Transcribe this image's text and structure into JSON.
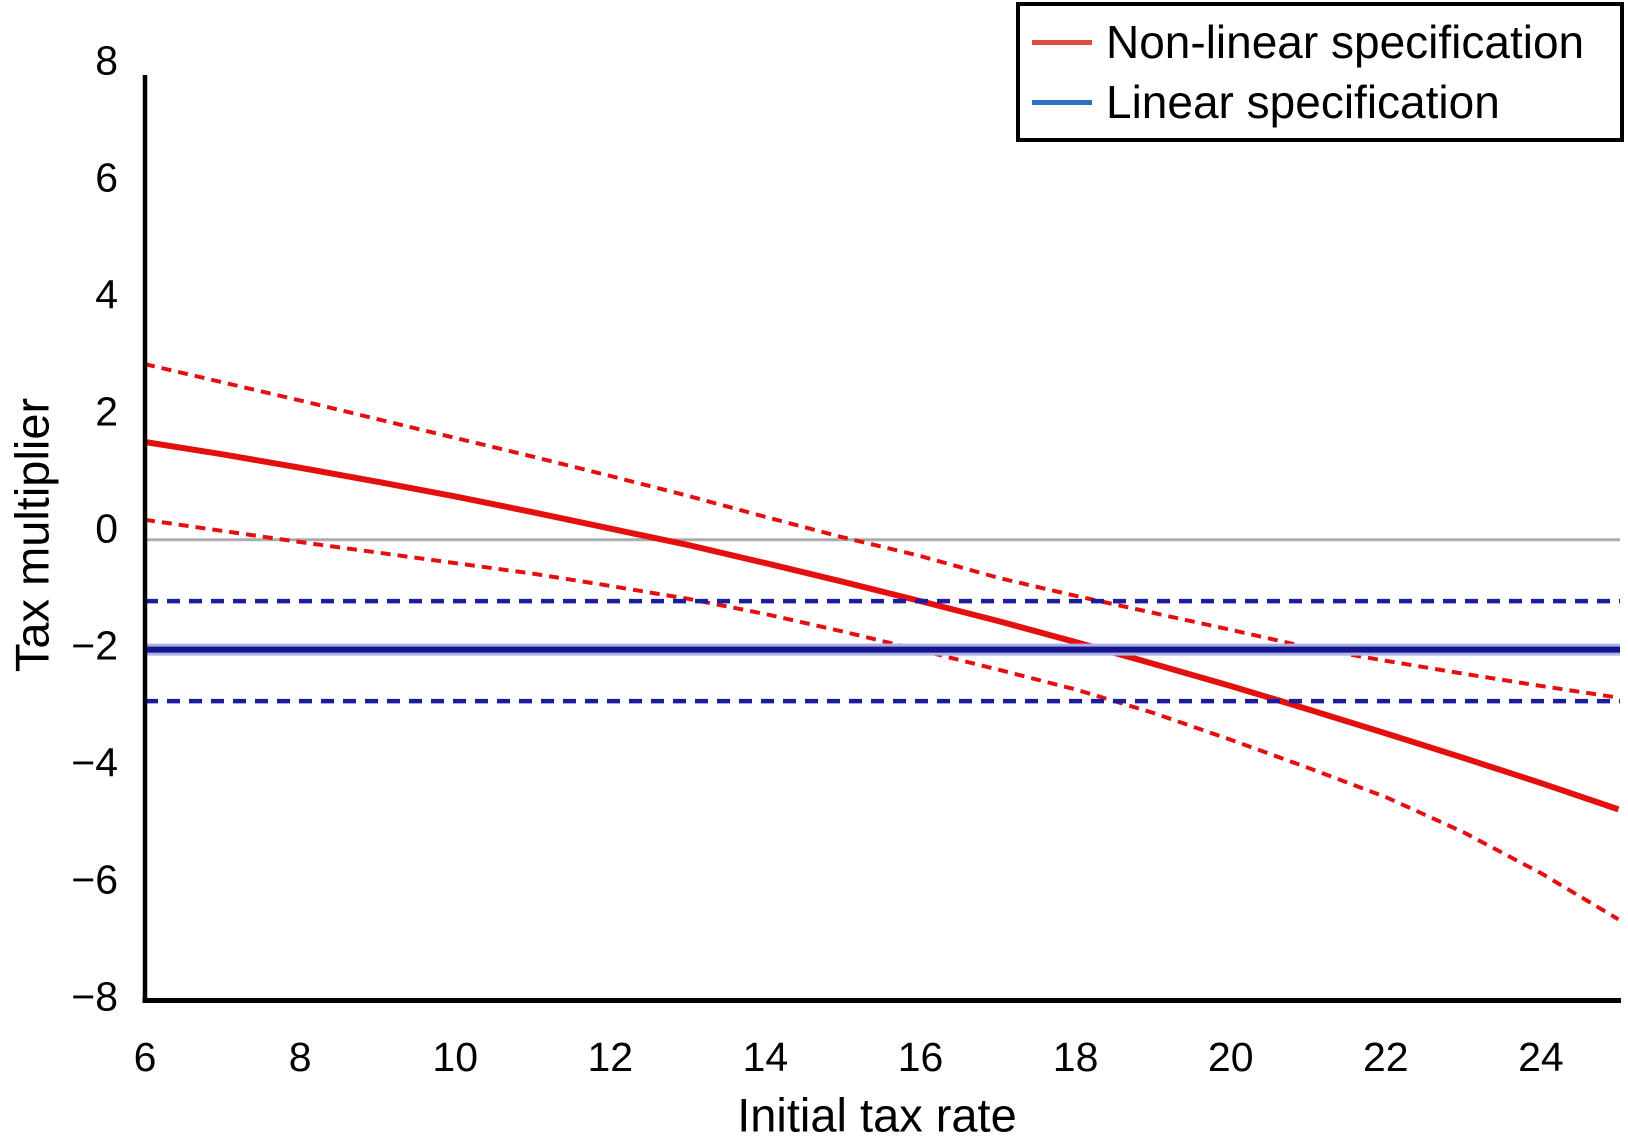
{
  "figure": {
    "background": "#ffffff",
    "axis_color": "#000000"
  },
  "chart_data": {
    "type": "line",
    "title": "",
    "xlabel": "Initial tax rate",
    "ylabel": "Tax multiplier",
    "xlim": [
      6,
      25
    ],
    "ylim": [
      -8,
      8
    ],
    "grid": false,
    "xticks": [
      6,
      8,
      10,
      12,
      14,
      16,
      18,
      20,
      22,
      24
    ],
    "xtick_labels": [
      "6",
      "8",
      "10",
      "12",
      "14",
      "16",
      "18",
      "20",
      "22",
      "24"
    ],
    "yticks": [
      8,
      6,
      4,
      2,
      0,
      -2,
      -4,
      -6,
      -8
    ],
    "ytick_labels": [
      "8",
      "6",
      "4",
      "2",
      "0",
      "−2",
      "−4",
      "−6",
      "−8"
    ],
    "legend": {
      "position": "top-right",
      "entries": [
        {
          "label": "Non-linear specification",
          "color": "#dd4b3c"
        },
        {
          "label": "Linear specification",
          "color": "#2e70c3"
        }
      ]
    },
    "reference_line": {
      "y": -0.2,
      "color": "#ababab",
      "width": 3
    },
    "x": [
      6,
      7,
      8,
      9,
      10,
      11,
      12,
      13,
      14,
      15,
      16,
      17,
      18,
      19,
      20,
      21,
      22,
      23,
      24,
      25
    ],
    "series": [
      {
        "name": "Non-linear specification",
        "color": "#e41010",
        "dash": false,
        "dash_pattern": "",
        "width": 6,
        "y": [
          1.47,
          1.26,
          1.03,
          0.79,
          0.54,
          0.27,
          -0.01,
          -0.29,
          -0.6,
          -0.92,
          -1.25,
          -1.59,
          -1.95,
          -2.32,
          -2.7,
          -3.1,
          -3.51,
          -3.93,
          -4.36,
          -4.81
        ]
      },
      {
        "name": "Non-linear CI upper",
        "color": "#e41010",
        "dash": true,
        "dash_pattern": "10 7",
        "width": 4,
        "y": [
          2.8,
          2.49,
          2.18,
          1.86,
          1.54,
          1.22,
          0.89,
          0.55,
          0.19,
          -0.16,
          -0.48,
          -0.85,
          -1.16,
          -1.45,
          -1.74,
          -2.04,
          -2.27,
          -2.49,
          -2.7,
          -2.9
        ]
      },
      {
        "name": "Non-linear CI lower",
        "color": "#e41010",
        "dash": true,
        "dash_pattern": "10 7",
        "width": 4,
        "y": [
          0.14,
          -0.05,
          -0.24,
          -0.42,
          -0.6,
          -0.78,
          -0.99,
          -1.21,
          -1.47,
          -1.77,
          -2.09,
          -2.42,
          -2.76,
          -3.16,
          -3.62,
          -4.1,
          -4.6,
          -5.2,
          -5.9,
          -6.69
        ]
      },
      {
        "name": "Linear specification",
        "type": "hline",
        "value": -2.08,
        "color": "#14148f",
        "halo": "#a9b2e0",
        "dash": false,
        "dash_pattern": "",
        "width": 6
      },
      {
        "name": "Linear CI upper",
        "type": "hline",
        "value": -1.25,
        "color": "#1c1c9e",
        "dash": true,
        "dash_pattern": "13 9",
        "width": 4.5
      },
      {
        "name": "Linear CI lower",
        "type": "hline",
        "value": -2.96,
        "color": "#1c1c9e",
        "dash": true,
        "dash_pattern": "13 9",
        "width": 4.5
      }
    ]
  }
}
